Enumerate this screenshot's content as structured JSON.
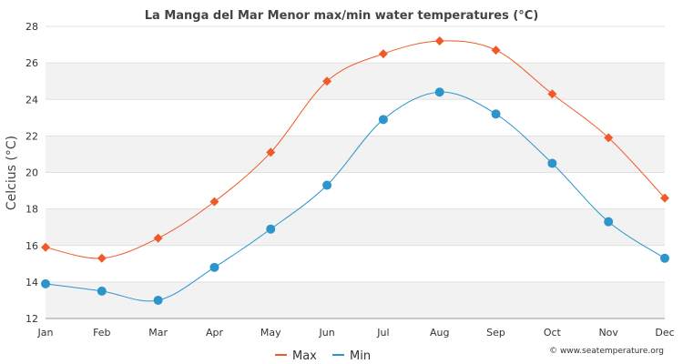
{
  "chart_data": {
    "type": "line",
    "title": "La Manga del Mar Menor max/min water temperatures (°C)",
    "ylabel": "Celcius (°C)",
    "xlabel": "",
    "categories": [
      "Jan",
      "Feb",
      "Mar",
      "Apr",
      "May",
      "Jun",
      "Jul",
      "Aug",
      "Sep",
      "Oct",
      "Nov",
      "Dec"
    ],
    "ylim": [
      12,
      28
    ],
    "yticks": [
      12,
      14,
      16,
      18,
      20,
      22,
      24,
      26,
      28
    ],
    "grid": true,
    "legend_position": "bottom-center",
    "series": [
      {
        "name": "Max",
        "color": "#f05a2a",
        "marker": "diamond",
        "values": [
          15.9,
          15.3,
          16.4,
          18.4,
          21.1,
          25.0,
          26.5,
          27.2,
          26.7,
          24.3,
          21.9,
          18.6
        ]
      },
      {
        "name": "Min",
        "color": "#2e95cc",
        "marker": "circle",
        "values": [
          13.9,
          13.5,
          13.0,
          14.8,
          16.9,
          19.3,
          22.9,
          24.4,
          23.2,
          20.5,
          17.3,
          15.3
        ]
      }
    ]
  },
  "credit": "© www.seatemperature.org"
}
